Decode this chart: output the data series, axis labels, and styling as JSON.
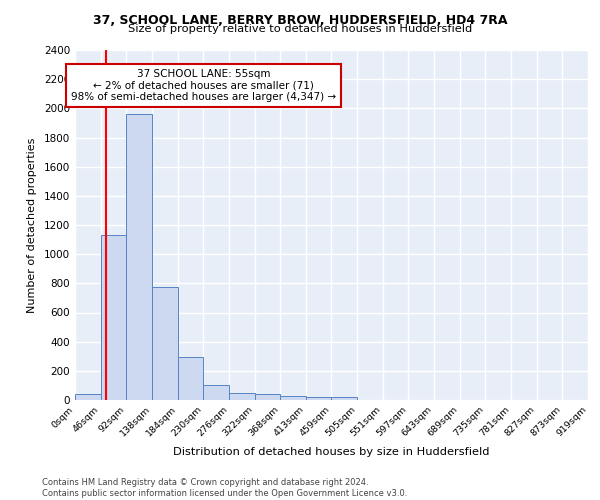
{
  "title": "37, SCHOOL LANE, BERRY BROW, HUDDERSFIELD, HD4 7RA",
  "subtitle": "Size of property relative to detached houses in Huddersfield",
  "xlabel": "Distribution of detached houses by size in Huddersfield",
  "ylabel": "Number of detached properties",
  "bin_labels": [
    "0sqm",
    "46sqm",
    "92sqm",
    "138sqm",
    "184sqm",
    "230sqm",
    "276sqm",
    "322sqm",
    "368sqm",
    "413sqm",
    "459sqm",
    "505sqm",
    "551sqm",
    "597sqm",
    "643sqm",
    "689sqm",
    "735sqm",
    "781sqm",
    "827sqm",
    "873sqm",
    "919sqm"
  ],
  "bin_edges": [
    0,
    46,
    92,
    138,
    184,
    230,
    276,
    322,
    368,
    413,
    459,
    505,
    551,
    597,
    643,
    689,
    735,
    781,
    827,
    873,
    919
  ],
  "counts": [
    40,
    1130,
    1960,
    775,
    295,
    100,
    47,
    40,
    30,
    22,
    20,
    0,
    0,
    0,
    0,
    0,
    0,
    0,
    0,
    0
  ],
  "bar_color": "#ccd9f0",
  "bar_edge_color": "#5585c5",
  "red_line_x": 55,
  "annotation_text": "37 SCHOOL LANE: 55sqm\n← 2% of detached houses are smaller (71)\n98% of semi-detached houses are larger (4,347) →",
  "annotation_box_color": "white",
  "annotation_box_edge_color": "#cc0000",
  "ylim": [
    0,
    2400
  ],
  "yticks": [
    0,
    200,
    400,
    600,
    800,
    1000,
    1200,
    1400,
    1600,
    1800,
    2000,
    2200,
    2400
  ],
  "footer_text": "Contains HM Land Registry data © Crown copyright and database right 2024.\nContains public sector information licensed under the Open Government Licence v3.0.",
  "bg_color": "#e8eef8",
  "grid_color": "white"
}
